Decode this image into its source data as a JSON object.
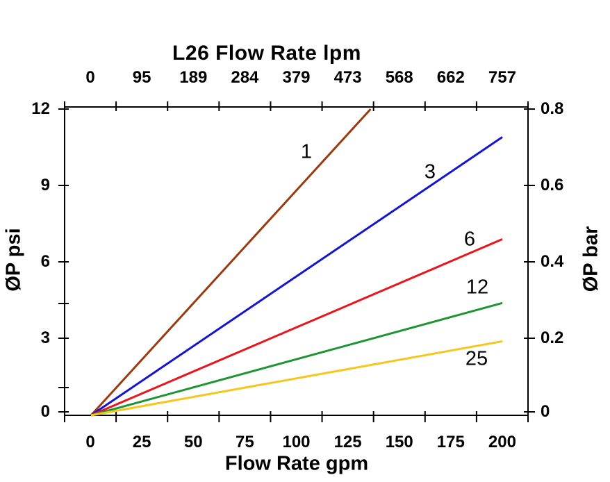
{
  "chart_data": {
    "type": "line",
    "title": "L26 Flow Rate lpm",
    "xlabel_bottom": "Flow Rate gpm",
    "ylabel_left": "ØP psi",
    "ylabel_right": "ØP bar",
    "x_top_axis": {
      "unit": "lpm",
      "ticklabels": [
        "0",
        "95",
        "189",
        "284",
        "379",
        "473",
        "568",
        "662",
        "757"
      ]
    },
    "x_bottom_axis": {
      "unit": "gpm",
      "ticklabels": [
        "0",
        "25",
        "50",
        "75",
        "100",
        "125",
        "150",
        "175",
        "200"
      ],
      "range": [
        0,
        200
      ]
    },
    "y_left_axis": {
      "unit": "psi",
      "ticklabels_top_to_bottom": [
        "12",
        "9",
        "6",
        "3",
        "0"
      ],
      "range": [
        0,
        12
      ]
    },
    "y_right_axis": {
      "unit": "bar",
      "ticklabels_top_to_bottom": [
        "0.8",
        "0.6",
        "0.4",
        "0.2",
        "0"
      ],
      "range": [
        0,
        0.8
      ]
    },
    "axis_color": "#000000",
    "background_color": "#ffffff",
    "series": [
      {
        "label": "1",
        "color": "#9a3a10",
        "points_gpm_psi": [
          [
            0,
            0
          ],
          [
            136,
            12
          ]
        ]
      },
      {
        "label": "3",
        "color": "#1414cc",
        "points_gpm_psi": [
          [
            0,
            0
          ],
          [
            200,
            10.9
          ]
        ]
      },
      {
        "label": "6",
        "color": "#e8151d",
        "points_gpm_psi": [
          [
            0,
            0
          ],
          [
            200,
            6.9
          ]
        ]
      },
      {
        "label": "12",
        "color": "#1f9434",
        "points_gpm_psi": [
          [
            0,
            0
          ],
          [
            200,
            4.4
          ]
        ]
      },
      {
        "label": "25",
        "color": "#f6c61b",
        "points_gpm_psi": [
          [
            0,
            0
          ],
          [
            200,
            2.9
          ]
        ]
      }
    ]
  }
}
